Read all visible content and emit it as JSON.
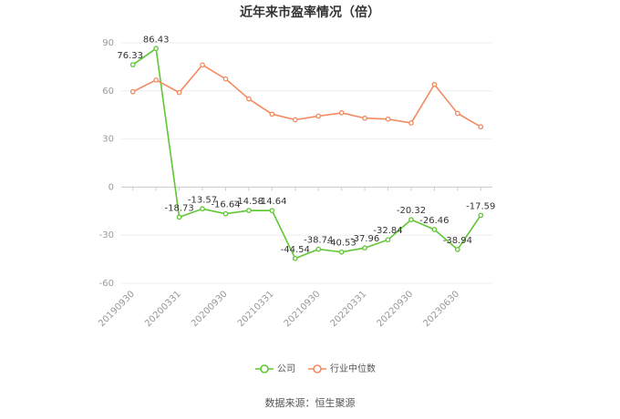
{
  "chart_data": {
    "type": "line",
    "title": "近年来市盈率情况（倍）",
    "categories": [
      "20190930",
      null,
      "20200331",
      null,
      "20200930",
      null,
      "20210331",
      null,
      "20210930",
      null,
      "20220331",
      null,
      "20220930",
      null,
      "20230630",
      null
    ],
    "series": [
      {
        "name": "公司",
        "color": "#5ec732",
        "values": [
          76.33,
          86.43,
          -18.73,
          -13.57,
          -16.64,
          -14.58,
          -14.64,
          -44.54,
          -38.74,
          -40.53,
          -37.96,
          -32.84,
          -20.32,
          -26.46,
          -38.94,
          -17.59
        ]
      },
      {
        "name": "行业中位数",
        "color": "#f4895f",
        "values": [
          59.5,
          66.8,
          59,
          76.2,
          67.5,
          55,
          45.5,
          42,
          44.3,
          46.3,
          43,
          42.4,
          40,
          64,
          46,
          37.6
        ]
      }
    ],
    "ylim": [
      -60,
      90
    ],
    "yticks": [
      -60,
      -30,
      0,
      30,
      60,
      90
    ],
    "grid": true,
    "source": "数据来源：恒生聚源"
  }
}
